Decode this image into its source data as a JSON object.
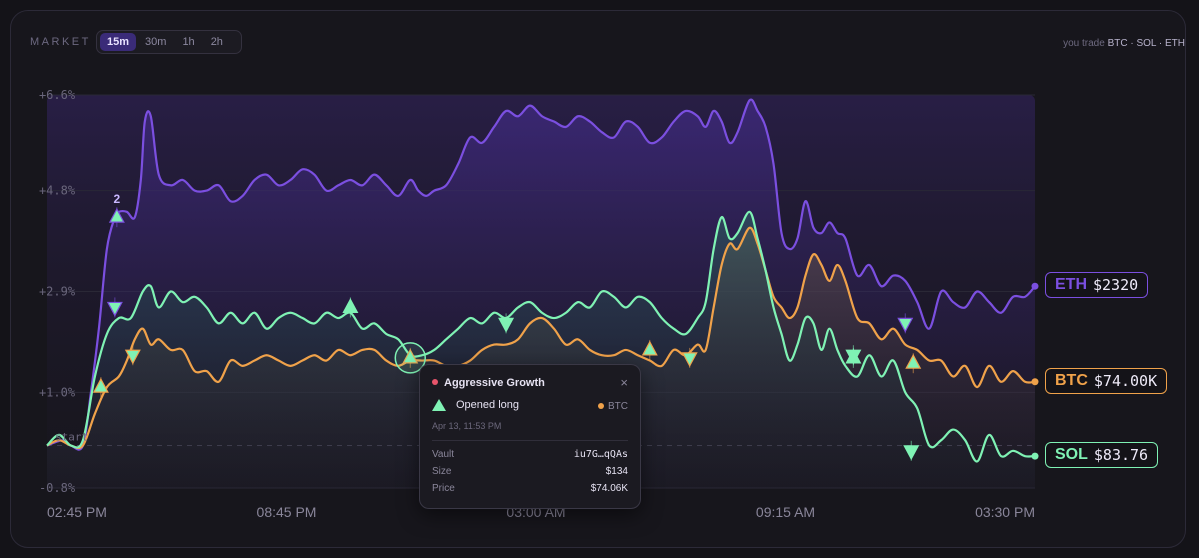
{
  "header": {
    "title": "MARKET",
    "timeframes": [
      {
        "label": "15m",
        "active": true
      },
      {
        "label": "30m",
        "active": false
      },
      {
        "label": "1h",
        "active": false
      },
      {
        "label": "2h",
        "active": false
      }
    ],
    "trade_prefix": "you trade",
    "trade_assets": "BTC · SOL · ETH"
  },
  "chart_data": {
    "type": "line",
    "title": "",
    "y_ticks": [
      "+6.6%",
      "+4.8%",
      "+2.9%",
      "+1.0%",
      "-0.8%"
    ],
    "y_tick_values": [
      6.6,
      4.8,
      2.9,
      1.0,
      -0.8
    ],
    "ylim": [
      -0.8,
      6.6
    ],
    "x_ticks": [
      "02:45 PM",
      "08:45 PM",
      "03:00 AM",
      "09:15 AM",
      "03:30 PM"
    ],
    "x_tick_values": [
      0,
      6,
      12.25,
      18.5,
      24.75
    ],
    "xlim": [
      0,
      24.75
    ],
    "baseline_label": "start",
    "baseline_value": 0,
    "series": [
      {
        "name": "ETH",
        "color": "#7b4fe0",
        "last_label": "$2320",
        "points": [
          [
            0,
            0
          ],
          [
            0.4,
            0.1
          ],
          [
            0.6,
            0
          ],
          [
            0.9,
            0
          ],
          [
            1.1,
            1
          ],
          [
            1.3,
            2.2
          ],
          [
            1.5,
            3.7
          ],
          [
            1.7,
            4.3
          ],
          [
            1.8,
            4.4
          ],
          [
            2.0,
            4.4
          ],
          [
            2.2,
            4.3
          ],
          [
            2.35,
            5
          ],
          [
            2.45,
            6.1
          ],
          [
            2.6,
            6.2
          ],
          [
            2.8,
            5.1
          ],
          [
            3.1,
            4.9
          ],
          [
            3.4,
            5
          ],
          [
            3.7,
            4.8
          ],
          [
            4,
            4.8
          ],
          [
            4.3,
            4.9
          ],
          [
            4.6,
            4.6
          ],
          [
            4.9,
            4.7
          ],
          [
            5.2,
            5
          ],
          [
            5.5,
            5.1
          ],
          [
            5.8,
            4.9
          ],
          [
            6.1,
            5
          ],
          [
            6.4,
            5.2
          ],
          [
            6.7,
            5.1
          ],
          [
            7,
            4.8
          ],
          [
            7.3,
            4.9
          ],
          [
            7.6,
            5
          ],
          [
            7.9,
            4.9
          ],
          [
            8.2,
            5.1
          ],
          [
            8.5,
            4.9
          ],
          [
            8.8,
            4.7
          ],
          [
            9.1,
            5
          ],
          [
            9.3,
            4.8
          ],
          [
            9.5,
            4.7
          ],
          [
            9.7,
            4.8
          ],
          [
            10,
            4.9
          ],
          [
            10.3,
            5.3
          ],
          [
            10.6,
            5.8
          ],
          [
            10.9,
            5.7
          ],
          [
            11.2,
            6.0
          ],
          [
            11.5,
            6.3
          ],
          [
            11.8,
            6.2
          ],
          [
            12.1,
            6.4
          ],
          [
            12.4,
            6.2
          ],
          [
            12.7,
            6.1
          ],
          [
            13,
            6.0
          ],
          [
            13.3,
            6.2
          ],
          [
            13.6,
            6.1
          ],
          [
            13.9,
            5.9
          ],
          [
            14.2,
            5.8
          ],
          [
            14.5,
            6.1
          ],
          [
            14.8,
            6.0
          ],
          [
            15.1,
            5.7
          ],
          [
            15.4,
            5.8
          ],
          [
            15.7,
            6.1
          ],
          [
            16,
            6.3
          ],
          [
            16.3,
            6.2
          ],
          [
            16.5,
            6.0
          ],
          [
            16.7,
            6.3
          ],
          [
            16.9,
            6.1
          ],
          [
            17.1,
            5.7
          ],
          [
            17.3,
            5.9
          ],
          [
            17.6,
            6.5
          ],
          [
            17.8,
            6.3
          ],
          [
            18,
            6.0
          ],
          [
            18.2,
            5.3
          ],
          [
            18.4,
            4.0
          ],
          [
            18.6,
            3.7
          ],
          [
            18.8,
            3.9
          ],
          [
            19,
            4.6
          ],
          [
            19.2,
            4.1
          ],
          [
            19.4,
            4.0
          ],
          [
            19.6,
            4.2
          ],
          [
            19.8,
            4.0
          ],
          [
            20,
            3.9
          ],
          [
            20.3,
            3.2
          ],
          [
            20.6,
            3.4
          ],
          [
            20.9,
            3.0
          ],
          [
            21.2,
            3.2
          ],
          [
            21.5,
            3.1
          ],
          [
            21.8,
            2.7
          ],
          [
            22.1,
            2.2
          ],
          [
            22.4,
            2.9
          ],
          [
            22.7,
            2.7
          ],
          [
            23,
            2.6
          ],
          [
            23.3,
            2.9
          ],
          [
            23.6,
            2.7
          ],
          [
            23.9,
            2.5
          ],
          [
            24.2,
            2.8
          ],
          [
            24.5,
            2.8
          ],
          [
            24.75,
            3.0
          ]
        ]
      },
      {
        "name": "BTC",
        "color": "#f0a24a",
        "last_label": "$74.00K",
        "points": [
          [
            0,
            0
          ],
          [
            0.3,
            0.1
          ],
          [
            0.6,
            0
          ],
          [
            0.9,
            0
          ],
          [
            1.2,
            0.6
          ],
          [
            1.5,
            1.1
          ],
          [
            1.8,
            1.3
          ],
          [
            2.0,
            1.6
          ],
          [
            2.2,
            2.0
          ],
          [
            2.4,
            2.2
          ],
          [
            2.6,
            1.9
          ],
          [
            2.8,
            2.0
          ],
          [
            3.1,
            1.8
          ],
          [
            3.4,
            1.8
          ],
          [
            3.7,
            1.4
          ],
          [
            4,
            1.4
          ],
          [
            4.3,
            1.2
          ],
          [
            4.6,
            1.6
          ],
          [
            4.9,
            1.5
          ],
          [
            5.2,
            1.6
          ],
          [
            5.5,
            1.7
          ],
          [
            5.8,
            1.6
          ],
          [
            6.1,
            1.5
          ],
          [
            6.4,
            1.6
          ],
          [
            6.7,
            1.7
          ],
          [
            7,
            1.6
          ],
          [
            7.3,
            1.8
          ],
          [
            7.6,
            1.7
          ],
          [
            7.9,
            1.8
          ],
          [
            8.2,
            1.8
          ],
          [
            8.5,
            1.6
          ],
          [
            8.8,
            1.5
          ],
          [
            9.1,
            1.6
          ],
          [
            9.4,
            1.6
          ],
          [
            9.7,
            1.6
          ],
          [
            10,
            1.5
          ],
          [
            10.3,
            1.5
          ],
          [
            10.6,
            1.6
          ],
          [
            10.9,
            1.8
          ],
          [
            11.2,
            1.9
          ],
          [
            11.5,
            1.9
          ],
          [
            11.8,
            2.0
          ],
          [
            12.1,
            2.3
          ],
          [
            12.4,
            2.4
          ],
          [
            12.7,
            2.2
          ],
          [
            13,
            1.9
          ],
          [
            13.3,
            2.0
          ],
          [
            13.6,
            1.8
          ],
          [
            13.9,
            1.7
          ],
          [
            14.2,
            1.7
          ],
          [
            14.5,
            1.8
          ],
          [
            14.8,
            1.7
          ],
          [
            15.1,
            1.6
          ],
          [
            15.4,
            1.5
          ],
          [
            15.7,
            1.8
          ],
          [
            16,
            1.7
          ],
          [
            16.3,
            1.9
          ],
          [
            16.5,
            1.8
          ],
          [
            16.7,
            2.6
          ],
          [
            16.9,
            3.4
          ],
          [
            17.1,
            3.8
          ],
          [
            17.3,
            3.7
          ],
          [
            17.6,
            4.1
          ],
          [
            17.8,
            3.8
          ],
          [
            18,
            3.3
          ],
          [
            18.2,
            2.8
          ],
          [
            18.4,
            2.6
          ],
          [
            18.6,
            2.4
          ],
          [
            18.8,
            2.6
          ],
          [
            19,
            3.2
          ],
          [
            19.2,
            3.6
          ],
          [
            19.4,
            3.4
          ],
          [
            19.6,
            3.1
          ],
          [
            19.8,
            3.4
          ],
          [
            20,
            3.1
          ],
          [
            20.3,
            2.4
          ],
          [
            20.6,
            2.3
          ],
          [
            20.9,
            2.0
          ],
          [
            21.2,
            2.2
          ],
          [
            21.5,
            1.9
          ],
          [
            21.8,
            1.8
          ],
          [
            22.1,
            1.6
          ],
          [
            22.4,
            1.6
          ],
          [
            22.7,
            1.3
          ],
          [
            23,
            1.5
          ],
          [
            23.3,
            1.1
          ],
          [
            23.6,
            1.5
          ],
          [
            23.9,
            1.2
          ],
          [
            24.2,
            1.4
          ],
          [
            24.5,
            1.2
          ],
          [
            24.75,
            1.2
          ]
        ]
      },
      {
        "name": "SOL",
        "color": "#7ff2b4",
        "last_label": "$83.76",
        "points": [
          [
            0,
            0
          ],
          [
            0.3,
            0.2
          ],
          [
            0.6,
            0
          ],
          [
            0.9,
            0.1
          ],
          [
            1.2,
            1.3
          ],
          [
            1.5,
            2.1
          ],
          [
            1.8,
            2.4
          ],
          [
            2.1,
            2.4
          ],
          [
            2.4,
            2.9
          ],
          [
            2.6,
            3.0
          ],
          [
            2.8,
            2.6
          ],
          [
            3.1,
            2.9
          ],
          [
            3.4,
            2.7
          ],
          [
            3.7,
            2.8
          ],
          [
            4,
            2.6
          ],
          [
            4.3,
            2.3
          ],
          [
            4.6,
            2.5
          ],
          [
            4.9,
            2.3
          ],
          [
            5.2,
            2.5
          ],
          [
            5.5,
            2.2
          ],
          [
            5.8,
            2.4
          ],
          [
            6.1,
            2.5
          ],
          [
            6.4,
            2.4
          ],
          [
            6.7,
            2.3
          ],
          [
            7,
            2.5
          ],
          [
            7.3,
            2.4
          ],
          [
            7.6,
            2.5
          ],
          [
            7.9,
            2.2
          ],
          [
            8.2,
            2.3
          ],
          [
            8.5,
            2.1
          ],
          [
            8.8,
            2.0
          ],
          [
            9.1,
            1.7
          ],
          [
            9.4,
            1.7
          ],
          [
            9.7,
            1.8
          ],
          [
            10,
            2.0
          ],
          [
            10.3,
            2.2
          ],
          [
            10.6,
            2.4
          ],
          [
            10.9,
            2.3
          ],
          [
            11.2,
            2.5
          ],
          [
            11.5,
            2.4
          ],
          [
            11.8,
            2.6
          ],
          [
            12.1,
            2.7
          ],
          [
            12.4,
            2.5
          ],
          [
            12.7,
            2.4
          ],
          [
            13,
            2.5
          ],
          [
            13.3,
            2.7
          ],
          [
            13.6,
            2.6
          ],
          [
            13.9,
            2.9
          ],
          [
            14.2,
            2.8
          ],
          [
            14.5,
            2.6
          ],
          [
            14.8,
            2.8
          ],
          [
            15.1,
            2.7
          ],
          [
            15.4,
            2.4
          ],
          [
            15.7,
            2.2
          ],
          [
            16,
            2.1
          ],
          [
            16.3,
            2.4
          ],
          [
            16.5,
            2.7
          ],
          [
            16.7,
            3.7
          ],
          [
            16.9,
            4.3
          ],
          [
            17.1,
            3.9
          ],
          [
            17.3,
            4.0
          ],
          [
            17.6,
            4.4
          ],
          [
            17.8,
            3.9
          ],
          [
            18,
            3.3
          ],
          [
            18.2,
            2.6
          ],
          [
            18.4,
            2.1
          ],
          [
            18.6,
            1.6
          ],
          [
            18.8,
            1.9
          ],
          [
            19,
            2.4
          ],
          [
            19.2,
            2.3
          ],
          [
            19.4,
            1.8
          ],
          [
            19.6,
            2.2
          ],
          [
            19.8,
            1.8
          ],
          [
            20,
            1.5
          ],
          [
            20.3,
            1.3
          ],
          [
            20.6,
            1.7
          ],
          [
            20.9,
            1.3
          ],
          [
            21.2,
            1.6
          ],
          [
            21.5,
            1.0
          ],
          [
            21.8,
            0.7
          ],
          [
            22.1,
            0.0
          ],
          [
            22.4,
            0.1
          ],
          [
            22.7,
            0.3
          ],
          [
            23,
            0.1
          ],
          [
            23.3,
            -0.3
          ],
          [
            23.6,
            0.2
          ],
          [
            23.9,
            -0.2
          ],
          [
            24.2,
            -0.1
          ],
          [
            24.5,
            -0.2
          ],
          [
            24.75,
            -0.2
          ]
        ]
      }
    ],
    "markers": [
      {
        "x": 1.75,
        "y": 4.3,
        "dir": "up",
        "series": "ETH",
        "label": "2"
      },
      {
        "x": 1.7,
        "y": 2.6,
        "dir": "down",
        "series": "ETH"
      },
      {
        "x": 1.35,
        "y": 1.1,
        "dir": "up",
        "series": "BTC"
      },
      {
        "x": 2.15,
        "y": 1.7,
        "dir": "down",
        "series": "BTC"
      },
      {
        "x": 7.6,
        "y": 2.6,
        "dir": "up",
        "series": "SOL"
      },
      {
        "x": 9.1,
        "y": 1.65,
        "dir": "up",
        "series": "BTC",
        "highlight": true
      },
      {
        "x": 11.5,
        "y": 2.3,
        "dir": "down",
        "series": "SOL"
      },
      {
        "x": 15.1,
        "y": 1.8,
        "dir": "up",
        "series": "BTC"
      },
      {
        "x": 16.1,
        "y": 1.65,
        "dir": "down",
        "series": "BTC"
      },
      {
        "x": 20.2,
        "y": 1.7,
        "dir": "down",
        "series": "SOL"
      },
      {
        "x": 20.2,
        "y": 1.65,
        "dir": "up",
        "series": "SOL"
      },
      {
        "x": 21.5,
        "y": 2.3,
        "dir": "down",
        "series": "ETH"
      },
      {
        "x": 21.7,
        "y": 1.55,
        "dir": "up",
        "series": "BTC"
      },
      {
        "x": 21.65,
        "y": -0.1,
        "dir": "down",
        "series": "SOL"
      }
    ]
  },
  "tooltip": {
    "title": "Aggressive Growth",
    "action": "Opened long",
    "asset": "BTC",
    "date": "Apr 13, 11:53 PM",
    "rows": [
      {
        "label": "Vault",
        "value": "iu7G…qQAs"
      },
      {
        "label": "Size",
        "value": "$134"
      },
      {
        "label": "Price",
        "value": "$74.06K"
      }
    ],
    "close_glyph": "×"
  },
  "badges": [
    {
      "sym": "ETH",
      "val": "$2320",
      "color": "#7b4fe0"
    },
    {
      "sym": "BTC",
      "val": "$74.00K",
      "color": "#f0a24a"
    },
    {
      "sym": "SOL",
      "val": "$83.76",
      "color": "#7ff2b4"
    }
  ]
}
